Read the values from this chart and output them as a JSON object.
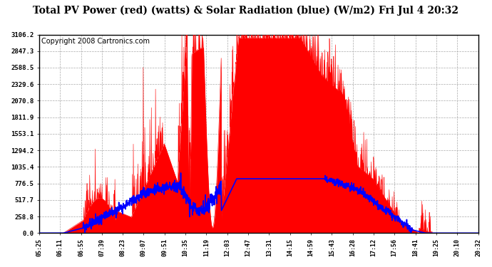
{
  "title": "Total PV Power (red) (watts) & Solar Radiation (blue) (W/m2) Fri Jul 4 20:32",
  "copyright": "Copyright 2008 Cartronics.com",
  "yticks": [
    0.0,
    258.8,
    517.7,
    776.5,
    1035.4,
    1294.2,
    1553.1,
    1811.9,
    2070.8,
    2329.6,
    2588.5,
    2847.3,
    3106.2
  ],
  "ymax": 3106.2,
  "ymin": 0.0,
  "xtick_labels": [
    "05:25",
    "06:11",
    "06:55",
    "07:39",
    "08:23",
    "09:07",
    "09:51",
    "10:35",
    "11:19",
    "12:03",
    "12:47",
    "13:31",
    "14:15",
    "14:59",
    "15:43",
    "16:28",
    "17:12",
    "17:56",
    "18:41",
    "19:25",
    "20:10",
    "20:32"
  ],
  "bg_color": "#ffffff",
  "grid_color": "#aaaaaa",
  "pv_color": "#ff0000",
  "solar_color": "#0000ff",
  "title_fontsize": 10,
  "copyright_fontsize": 7
}
